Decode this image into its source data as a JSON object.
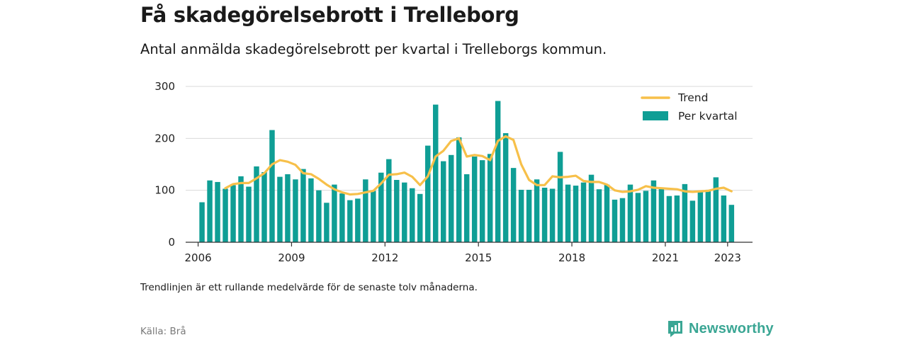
{
  "header": {
    "title": "Få skadegörelsebrott i Trelleborg",
    "subtitle": "Antal anmälda skadegörelsebrott per kvartal i Trelleborgs kommun."
  },
  "footer": {
    "note": "Trendlinjen är ett rullande medelvärde för de senaste tolv månaderna.",
    "source": "Källa: Brå",
    "brand": "Newsworthy"
  },
  "colors": {
    "bar": "#0f9e95",
    "trend": "#f7c04a",
    "grid": "#d9d9d9",
    "axis": "#333333",
    "brand": "#3aa694"
  },
  "chart_data": {
    "type": "bar",
    "start": "2006 Q1",
    "xlim": [
      2005.6,
      2023.8
    ],
    "ylim": [
      0,
      300
    ],
    "yticks": [
      0,
      100,
      200,
      300
    ],
    "xticks": [
      2006,
      2009,
      2012,
      2015,
      2018,
      2021,
      2023
    ],
    "legend_position": "top-right",
    "grid": true,
    "series": [
      {
        "name": "Per kvartal",
        "kind": "bar",
        "values": [
          77,
          119,
          116,
          103,
          110,
          127,
          107,
          146,
          135,
          216,
          126,
          131,
          121,
          141,
          123,
          100,
          76,
          111,
          94,
          81,
          84,
          121,
          99,
          134,
          160,
          120,
          115,
          104,
          93,
          186,
          265,
          156,
          168,
          202,
          131,
          165,
          158,
          170,
          272,
          210,
          143,
          101,
          101,
          121,
          105,
          103,
          174,
          111,
          109,
          115,
          130,
          102,
          111,
          82,
          85,
          111,
          95,
          99,
          119,
          103,
          89,
          90,
          112,
          80,
          98,
          101,
          125,
          90,
          72
        ]
      },
      {
        "name": "Trend",
        "kind": "line",
        "values": [
          null,
          null,
          null,
          104,
          112,
          114,
          114,
          123,
          133,
          150,
          158,
          155,
          149,
          133,
          131,
          122,
          111,
          102,
          96,
          92,
          93,
          96,
          99,
          113,
          130,
          131,
          134,
          126,
          110,
          127,
          165,
          176,
          195,
          200,
          165,
          168,
          166,
          158,
          195,
          204,
          197,
          150,
          120,
          110,
          110,
          127,
          125,
          126,
          128,
          118,
          116,
          116,
          111,
          100,
          97,
          98,
          101,
          108,
          105,
          104,
          103,
          102,
          98,
          97,
          98,
          99,
          103,
          105,
          98
        ]
      }
    ]
  }
}
